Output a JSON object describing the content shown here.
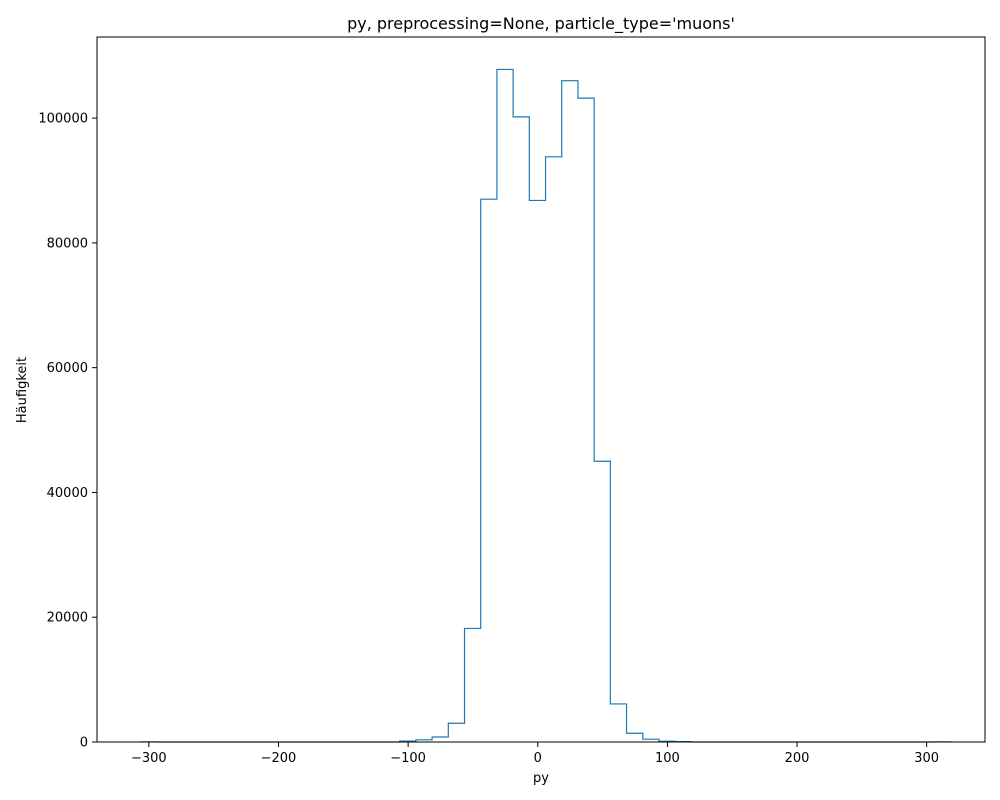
{
  "chart_data": {
    "type": "histogram",
    "title": "py, preprocessing=None, particle_type='muons'",
    "xlabel": "py",
    "ylabel": "Häufigkeit",
    "xlim": [
      -340,
      345
    ],
    "ylim": [
      0,
      113000
    ],
    "grid": false,
    "x_ticks": [
      -300,
      -200,
      -100,
      0,
      100,
      200,
      300
    ],
    "x_tick_labels": [
      "−300",
      "−200",
      "−100",
      "0",
      "100",
      "200",
      "300"
    ],
    "y_ticks": [
      0,
      20000,
      40000,
      60000,
      80000,
      100000
    ],
    "y_tick_labels": [
      "0",
      "20000",
      "40000",
      "60000",
      "80000",
      "100000"
    ],
    "series": [
      {
        "color": "#1f77b4",
        "bin_edges": [
          -306.5,
          -294,
          -281.5,
          -269,
          -256.5,
          -244,
          -231.5,
          -219,
          -206.5,
          -194,
          -181.5,
          -169,
          -156.5,
          -144,
          -131.5,
          -119,
          -106.5,
          -94,
          -81.5,
          -69,
          -56.5,
          -44,
          -31.5,
          -19,
          -6.5,
          6,
          18.5,
          31,
          43.5,
          56,
          68.5,
          81,
          93.5,
          106,
          118.5,
          131,
          143.5,
          156,
          168.5,
          181,
          193.5,
          206,
          218.5,
          231,
          243.5,
          256,
          268.5,
          281,
          293.5,
          306,
          318.5
        ],
        "counts": [
          20,
          0,
          0,
          0,
          0,
          0,
          0,
          0,
          0,
          0,
          0,
          0,
          0,
          0,
          0,
          0,
          150,
          350,
          800,
          3000,
          18200,
          87000,
          107800,
          100200,
          86800,
          93800,
          106000,
          103200,
          45000,
          6100,
          1400,
          450,
          120,
          60,
          0,
          0,
          0,
          0,
          0,
          0,
          0,
          0,
          0,
          0,
          0,
          0,
          0,
          0,
          0,
          20
        ]
      }
    ]
  }
}
